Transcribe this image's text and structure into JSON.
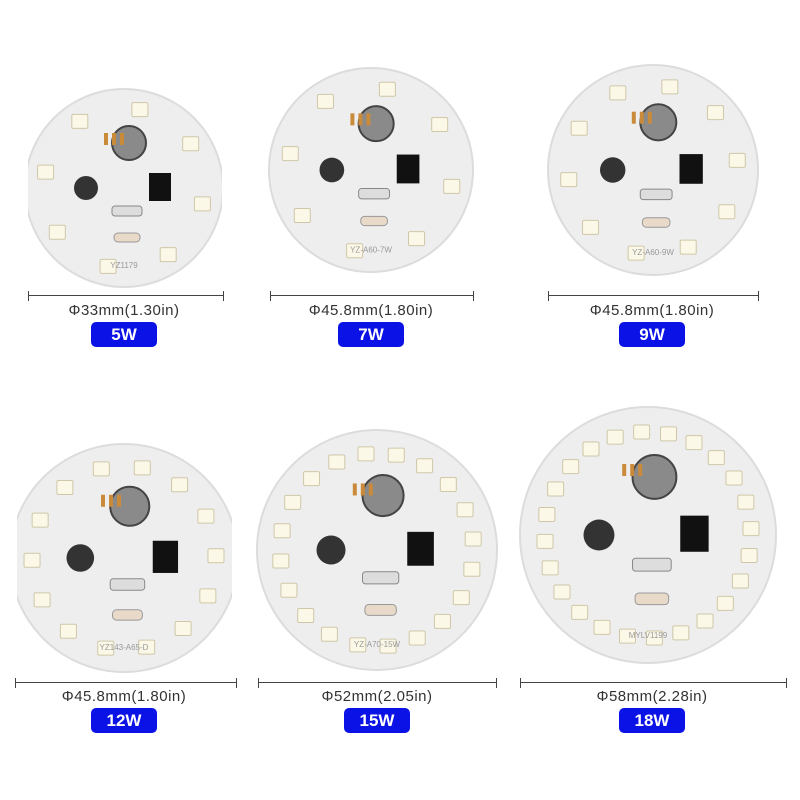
{
  "colors": {
    "badge": "#0a12e6",
    "board": "#eeeeee",
    "led": "#fbf8e8",
    "pad": "#c98a3a"
  },
  "products": [
    {
      "dimension": "Φ33mm(1.30in)",
      "wattage": "5W",
      "board_text": "YZ1179",
      "leds": 8
    },
    {
      "dimension": "Φ45.8mm(1.80in)",
      "wattage": "7W",
      "board_text": "YZ-A60-7W",
      "leds": 8
    },
    {
      "dimension": "Φ45.8mm(1.80in)",
      "wattage": "9W",
      "board_text": "YZ-A60-9W",
      "leds": 10
    },
    {
      "dimension": "Φ45.8mm(1.80in)",
      "wattage": "12W",
      "board_text": "YZ143-A65-D",
      "leds": 14
    },
    {
      "dimension": "Φ52mm(2.05in)",
      "wattage": "15W",
      "board_text": "YZ-A70-15W",
      "leds": 20
    },
    {
      "dimension": "Φ58mm(2.28in)",
      "wattage": "18W",
      "board_text": "MYLV1199",
      "leds": 24
    }
  ]
}
